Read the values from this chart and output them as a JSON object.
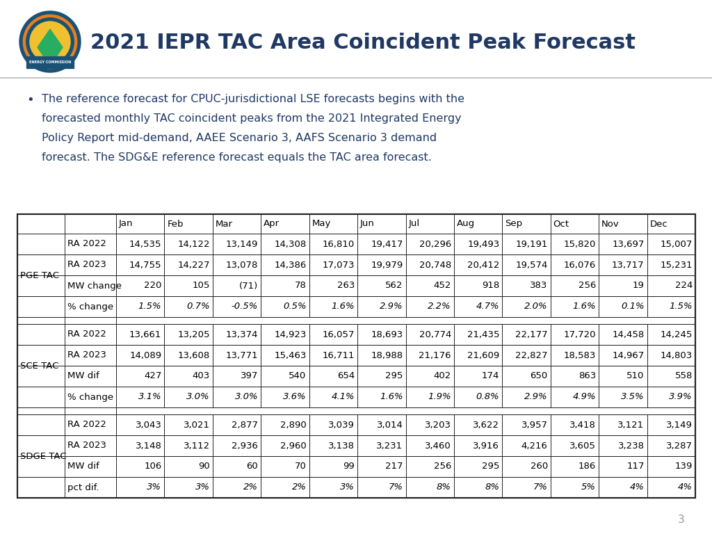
{
  "title": "2021 IEPR TAC Area Coincident Peak Forecast",
  "title_color": "#1F3864",
  "bullet_text": "The reference forecast for CPUC-jurisdictional LSE forecasts begins with the forecasted monthly TAC coincident peaks from the 2021 Integrated Energy Policy Report mid-demand, AAEE Scenario 3, AAFS Scenario 3 demand forecast. The SDG&E reference forecast equals the TAC area forecast.",
  "bullet_color": "#1F3864",
  "page_number": "3",
  "background_color": "#FFFFFF",
  "months": [
    "Jan",
    "Feb",
    "Mar",
    "Apr",
    "May",
    "Jun",
    "Jul",
    "Aug",
    "Sep",
    "Oct",
    "Nov",
    "Dec"
  ],
  "sections": [
    {
      "label": "PGE TAC",
      "rows": [
        {
          "label": "RA 2022",
          "values": [
            "14,535",
            "14,122",
            "13,149",
            "14,308",
            "16,810",
            "19,417",
            "20,296",
            "19,493",
            "19,191",
            "15,820",
            "13,697",
            "15,007"
          ],
          "italic": false
        },
        {
          "label": "RA 2023",
          "values": [
            "14,755",
            "14,227",
            "13,078",
            "14,386",
            "17,073",
            "19,979",
            "20,748",
            "20,412",
            "19,574",
            "16,076",
            "13,717",
            "15,231"
          ],
          "italic": false
        },
        {
          "label": "MW change",
          "values": [
            "220",
            "105",
            "(71)",
            "78",
            "263",
            "562",
            "452",
            "918",
            "383",
            "256",
            "19",
            "224"
          ],
          "italic": false
        },
        {
          "label": "% change",
          "values": [
            "1.5%",
            "0.7%",
            "-0.5%",
            "0.5%",
            "1.6%",
            "2.9%",
            "2.2%",
            "4.7%",
            "2.0%",
            "1.6%",
            "0.1%",
            "1.5%"
          ],
          "italic": true
        }
      ]
    },
    {
      "label": "SCE TAC",
      "rows": [
        {
          "label": "RA 2022",
          "values": [
            "13,661",
            "13,205",
            "13,374",
            "14,923",
            "16,057",
            "18,693",
            "20,774",
            "21,435",
            "22,177",
            "17,720",
            "14,458",
            "14,245"
          ],
          "italic": false
        },
        {
          "label": "RA 2023",
          "values": [
            "14,089",
            "13,608",
            "13,771",
            "15,463",
            "16,711",
            "18,988",
            "21,176",
            "21,609",
            "22,827",
            "18,583",
            "14,967",
            "14,803"
          ],
          "italic": false
        },
        {
          "label": "MW dif",
          "values": [
            "427",
            "403",
            "397",
            "540",
            "654",
            "295",
            "402",
            "174",
            "650",
            "863",
            "510",
            "558"
          ],
          "italic": false
        },
        {
          "label": "% change",
          "values": [
            "3.1%",
            "3.0%",
            "3.0%",
            "3.6%",
            "4.1%",
            "1.6%",
            "1.9%",
            "0.8%",
            "2.9%",
            "4.9%",
            "3.5%",
            "3.9%"
          ],
          "italic": true
        }
      ]
    },
    {
      "label": "SDGE TAC",
      "rows": [
        {
          "label": "RA 2022",
          "values": [
            "3,043",
            "3,021",
            "2,877",
            "2,890",
            "3,039",
            "3,014",
            "3,203",
            "3,622",
            "3,957",
            "3,418",
            "3,121",
            "3,149"
          ],
          "italic": false
        },
        {
          "label": "RA 2023",
          "values": [
            "3,148",
            "3,112",
            "2,936",
            "2,960",
            "3,138",
            "3,231",
            "3,460",
            "3,916",
            "4,216",
            "3,605",
            "3,238",
            "3,287"
          ],
          "italic": false
        },
        {
          "label": "MW dif",
          "values": [
            "106",
            "90",
            "60",
            "70",
            "99",
            "217",
            "256",
            "295",
            "260",
            "186",
            "117",
            "139"
          ],
          "italic": false
        },
        {
          "label": "pct dif.",
          "values": [
            "3%",
            "3%",
            "2%",
            "2%",
            "3%",
            "7%",
            "8%",
            "8%",
            "7%",
            "5%",
            "4%",
            "4%"
          ],
          "italic": true
        }
      ]
    }
  ]
}
